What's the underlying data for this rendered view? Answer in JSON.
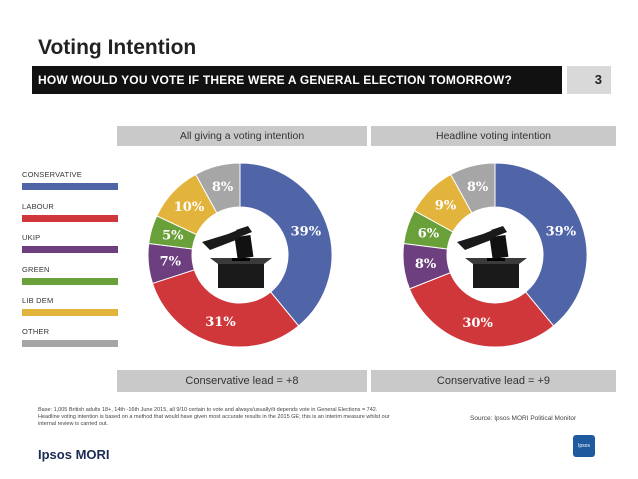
{
  "header": {
    "title": "Voting Intention",
    "question": "HOW WOULD YOU VOTE IF THERE WERE A GENERAL ELECTION TOMORROW?",
    "page_number": "3"
  },
  "legend": [
    {
      "label": "CONSERVATIVE",
      "color": "#5064a8"
    },
    {
      "label": "LABOUR",
      "color": "#d0373a"
    },
    {
      "label": "UKIP",
      "color": "#6d3f7e"
    },
    {
      "label": "GREEN",
      "color": "#6aa03a"
    },
    {
      "label": "LIB DEM",
      "color": "#e3b43c"
    },
    {
      "label": "OTHER",
      "color": "#a6a6a6"
    }
  ],
  "chart_data": [
    {
      "type": "pie",
      "title": "All giving a voting intention",
      "footer": "Conservative lead = +8",
      "categories": [
        "CONSERVATIVE",
        "LABOUR",
        "UKIP",
        "GREEN",
        "LIB DEM",
        "OTHER"
      ],
      "values": [
        39,
        31,
        7,
        5,
        10,
        8
      ],
      "labels": [
        "39%",
        "31%",
        "7%",
        "5%",
        "10%",
        "8%"
      ]
    },
    {
      "type": "pie",
      "title": "Headline voting intention",
      "footer": "Conservative lead = +9",
      "categories": [
        "CONSERVATIVE",
        "LABOUR",
        "UKIP",
        "GREEN",
        "LIB DEM",
        "OTHER"
      ],
      "values": [
        39,
        30,
        8,
        6,
        9,
        8
      ],
      "labels": [
        "39%",
        "30%",
        "8%",
        "6%",
        "9%",
        "8%"
      ]
    }
  ],
  "footer": {
    "base_note": "Base: 1,005 British adults 18+, 14th -16th June 2015, all 9/10 certain to vote and always/usually/it depends vote in General Elections = 742. Headline voting intention is based on a method that would have given most accurate results in the 2015 GE; this is an interim measure whilst our internal review is carried out.",
    "source": "Source: Ipsos MORI Political Monitor",
    "brand": "Ipsos MORI",
    "logo_text": "Ipsos"
  }
}
